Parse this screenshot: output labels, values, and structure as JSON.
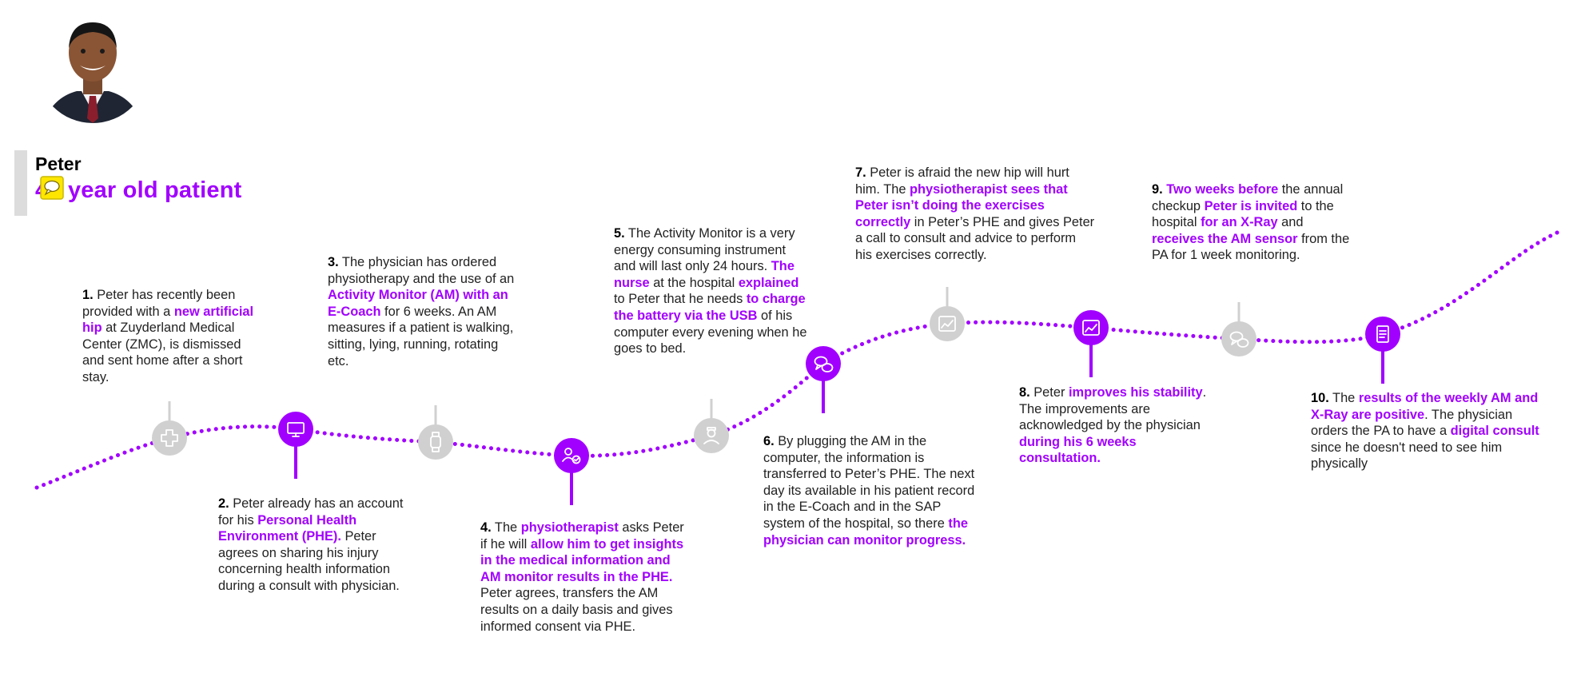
{
  "persona": {
    "name": "Peter",
    "age_prefix": "45",
    "subtitle": "year old patient"
  },
  "colors": {
    "accent": "#a100ff",
    "inactive": "#d0d0d0",
    "text": "#222222"
  },
  "markers": [
    {
      "step": 1,
      "icon": "medical-cross-icon",
      "active": false
    },
    {
      "step": 2,
      "icon": "monitor-icon",
      "active": true
    },
    {
      "step": 3,
      "icon": "smartwatch-icon",
      "active": false
    },
    {
      "step": 4,
      "icon": "users-check-icon",
      "active": true
    },
    {
      "step": 5,
      "icon": "nurse-icon",
      "active": false
    },
    {
      "step": 6,
      "icon": "chat-bubbles-icon",
      "active": true
    },
    {
      "step": 7,
      "icon": "chart-icon",
      "active": false
    },
    {
      "step": 8,
      "icon": "chart-icon",
      "active": true
    },
    {
      "step": 9,
      "icon": "chat-bubbles-icon",
      "active": false
    },
    {
      "step": 10,
      "icon": "checklist-icon",
      "active": true
    }
  ],
  "steps": [
    {
      "number": "1.",
      "segments": [
        {
          "t": " Peter has recently been provided with a ",
          "h": false
        },
        {
          "t": "new artificial hip",
          "h": true
        },
        {
          "t": " at Zuyderland Medical Center (ZMC), is dismissed and sent home after a short stay.",
          "h": false
        }
      ]
    },
    {
      "number": "2.",
      "segments": [
        {
          "t": " Peter already has an account for his ",
          "h": false
        },
        {
          "t": "Personal Health Environment (PHE).",
          "h": true
        },
        {
          "t": " Peter agrees on sharing his injury concerning health information during a consult with physician.",
          "h": false
        }
      ]
    },
    {
      "number": "3.",
      "segments": [
        {
          "t": " The physician has ordered physiotherapy and the use of an ",
          "h": false
        },
        {
          "t": "Activity Monitor (AM) with an E-Coach",
          "h": true
        },
        {
          "t": " for 6 weeks. An AM measures if a patient is walking, sitting, lying, running, rotating etc.",
          "h": false
        }
      ]
    },
    {
      "number": "4.",
      "segments": [
        {
          "t": " The ",
          "h": false
        },
        {
          "t": "physiotherapist",
          "h": true
        },
        {
          "t": " asks Peter if he will ",
          "h": false
        },
        {
          "t": "allow him to get insights in the medical information and AM monitor results in the PHE.",
          "h": true
        },
        {
          "t": " Peter agrees, transfers the AM results on a daily basis and gives informed consent via PHE.",
          "h": false
        }
      ]
    },
    {
      "number": "5.",
      "segments": [
        {
          "t": " The Activity Monitor is a very energy consuming instrument and will last only 24 hours. ",
          "h": false
        },
        {
          "t": "The nurse",
          "h": true
        },
        {
          "t": " at the hospital ",
          "h": false
        },
        {
          "t": "explained",
          "h": true
        },
        {
          "t": " to Peter that he needs ",
          "h": false
        },
        {
          "t": "to charge the battery via the USB",
          "h": true
        },
        {
          "t": " of his computer every evening when he goes to bed.",
          "h": false
        }
      ]
    },
    {
      "number": "6.",
      "segments": [
        {
          "t": " By plugging the AM in the computer, the information is transferred to Peter’s PHE. The next day its available in his patient record in the E-Coach and in the SAP system of the hospital, so there ",
          "h": false
        },
        {
          "t": "the physician can monitor progress.",
          "h": true
        }
      ]
    },
    {
      "number": "7.",
      "segments": [
        {
          "t": " Peter is afraid the new hip will hurt him. The ",
          "h": false
        },
        {
          "t": "physiotherapist sees that Peter isn’t doing the exercises correctly",
          "h": true
        },
        {
          "t": " in Peter’s PHE and gives Peter a call to consult and advice to perform his exercises correctly.",
          "h": false
        }
      ]
    },
    {
      "number": "8.",
      "segments": [
        {
          "t": " Peter ",
          "h": false
        },
        {
          "t": "improves his stability",
          "h": true
        },
        {
          "t": ". The improvements are acknowledged  by the physician ",
          "h": false
        },
        {
          "t": "during his 6 weeks consultation.",
          "h": true
        }
      ]
    },
    {
      "number": "9.",
      "segments": [
        {
          "t": " ",
          "h": false
        },
        {
          "t": "Two weeks before",
          "h": true
        },
        {
          "t": " the annual checkup ",
          "h": false
        },
        {
          "t": "Peter is invited",
          "h": true
        },
        {
          "t": " to the hospital ",
          "h": false
        },
        {
          "t": "for an X-Ray",
          "h": true
        },
        {
          "t": " and ",
          "h": false
        },
        {
          "t": "receives the AM sensor",
          "h": true
        },
        {
          "t": " from the PA for 1 week monitoring.",
          "h": false
        }
      ]
    },
    {
      "number": "10.",
      "segments": [
        {
          "t": " The ",
          "h": false
        },
        {
          "t": "results of the weekly AM and X-Ray are positive",
          "h": true
        },
        {
          "t": ". The physician orders the PA to have a ",
          "h": false
        },
        {
          "t": "digital consult",
          "h": true
        },
        {
          "t": " since he doesn't need to see him physically",
          "h": false
        }
      ]
    }
  ]
}
